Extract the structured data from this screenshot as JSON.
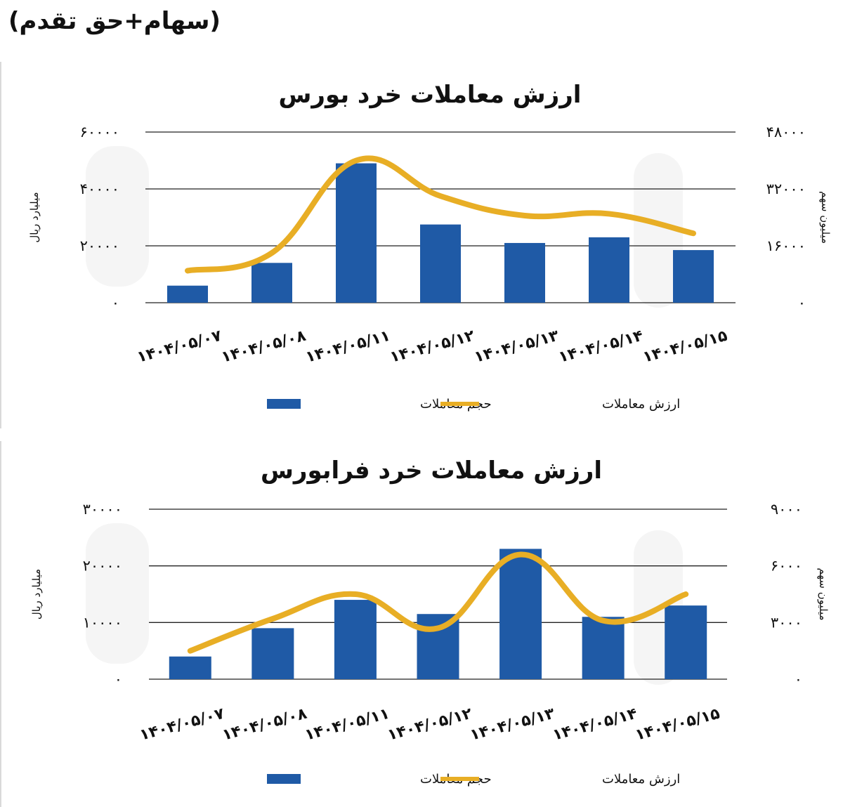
{
  "page": {
    "header_title": "(سهام+حق تقدم)"
  },
  "chart_data": [
    {
      "type": "bar",
      "title": "ارزش معاملات خرد بورس",
      "categories": [
        "۱۴۰۴/۰۵/۰۷",
        "۱۴۰۴/۰۵/۰۸",
        "۱۴۰۴/۰۵/۱۱",
        "۱۴۰۴/۰۵/۱۲",
        "۱۴۰۴/۰۵/۱۳",
        "۱۴۰۴/۰۵/۱۴",
        "۱۴۰۴/۰۵/۱۵"
      ],
      "series": [
        {
          "name": "حجم معاملات",
          "type": "bar",
          "axis": "left",
          "values": [
            6000,
            14000,
            49000,
            27500,
            21000,
            23000,
            18500
          ],
          "color": "#1f5aa6"
        },
        {
          "name": "ارزش معاملات",
          "type": "line",
          "axis": "right",
          "values": [
            9000,
            14000,
            40000,
            30000,
            24500,
            25000,
            19500
          ],
          "color": "#e8ae25"
        }
      ],
      "ylabel": "میلیارد ریال",
      "y2label": "میلیون سهم",
      "ylim": [
        0,
        60000
      ],
      "y2lim": [
        0,
        48000
      ],
      "yticks": [
        "۰",
        "۲۰۰۰۰",
        "۴۰۰۰۰",
        "۶۰۰۰۰"
      ],
      "y2ticks": [
        "۰",
        "۱۶۰۰۰",
        "۳۲۰۰۰",
        "۴۸۰۰۰"
      ],
      "grid": true,
      "legend": "bottom"
    },
    {
      "type": "bar",
      "title": "ارزش معاملات خرد فرابورس",
      "categories": [
        "۱۴۰۴/۰۵/۰۷",
        "۱۴۰۴/۰۵/۰۸",
        "۱۴۰۴/۰۵/۱۱",
        "۱۴۰۴/۰۵/۱۲",
        "۱۴۰۴/۰۵/۱۳",
        "۱۴۰۴/۰۵/۱۴",
        "۱۴۰۴/۰۵/۱۵"
      ],
      "series": [
        {
          "name": "حجم معاملات",
          "type": "bar",
          "axis": "left",
          "values": [
            4000,
            9000,
            14000,
            11500,
            23000,
            11000,
            13000
          ],
          "color": "#1f5aa6"
        },
        {
          "name": "ارزش معاملات",
          "type": "line",
          "axis": "right",
          "values": [
            1500,
            3200,
            4500,
            2700,
            6600,
            3100,
            4500
          ],
          "color": "#e8ae25"
        }
      ],
      "ylabel": "میلیارد ریال",
      "y2label": "میلیون سهم",
      "ylim": [
        0,
        30000
      ],
      "y2lim": [
        0,
        9000
      ],
      "yticks": [
        "۰",
        "۱۰۰۰۰",
        "۲۰۰۰۰",
        "۳۰۰۰۰"
      ],
      "y2ticks": [
        "۰",
        "۳۰۰۰",
        "۶۰۰۰",
        "۹۰۰۰"
      ],
      "grid": true,
      "legend": "bottom"
    }
  ]
}
